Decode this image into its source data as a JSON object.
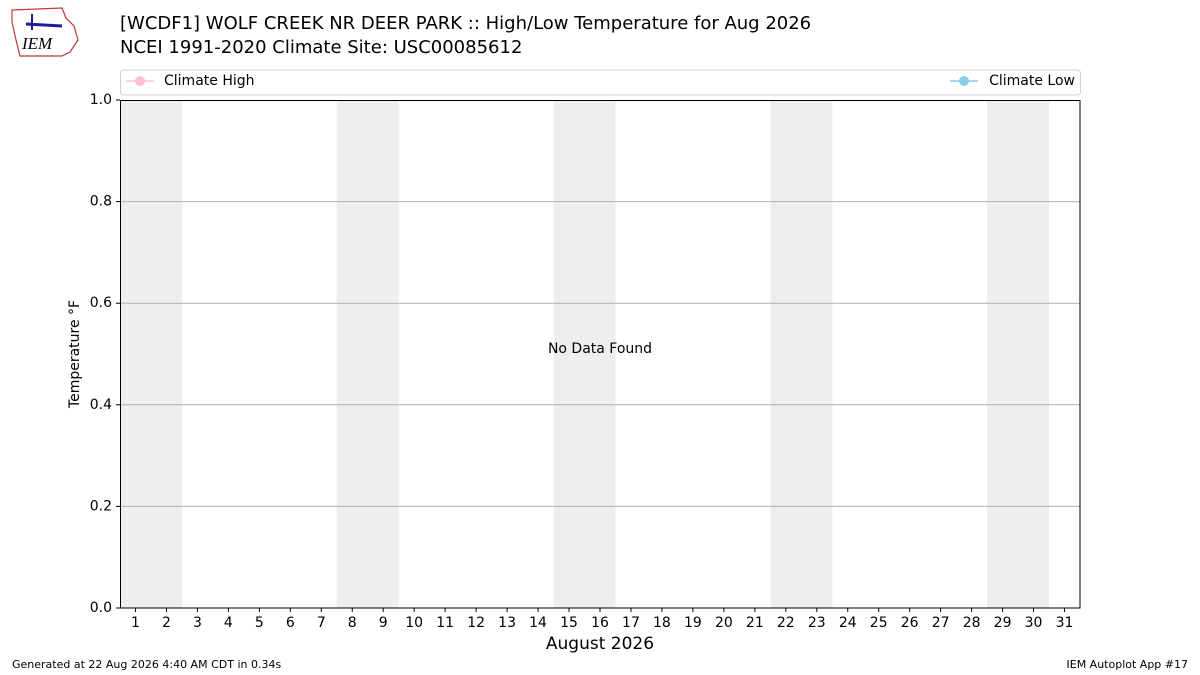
{
  "chart_data": {
    "type": "line",
    "title": "[WCDF1] WOLF CREEK NR DEER PARK :: High/Low Temperature for Aug 2026",
    "subtitle": "NCEI 1991-2020 Climate Site: USC00085612",
    "logo_text": "IEM",
    "x_label": "August 2026",
    "y_label": "Temperature °F",
    "annotation": "No Data Found",
    "footer_left": "Generated at 22 Aug 2026 4:40 AM CDT in 0.34s",
    "footer_right": "IEM Autoplot App #17",
    "x": [],
    "series": [
      {
        "name": "Climate High",
        "color": "pink",
        "values": []
      },
      {
        "name": "Climate Low",
        "color": "skyblue",
        "values": []
      }
    ],
    "shaded_ranges": [
      [
        0.5,
        2.5
      ],
      [
        7.5,
        9.5
      ],
      [
        14.5,
        16.5
      ],
      [
        21.5,
        23.5
      ],
      [
        28.5,
        30.5
      ]
    ],
    "shade_color": "#eeeeee",
    "xlim": [
      0.5,
      31.5
    ],
    "xticks": [
      1,
      2,
      3,
      4,
      5,
      6,
      7,
      8,
      9,
      10,
      11,
      12,
      13,
      14,
      15,
      16,
      17,
      18,
      19,
      20,
      21,
      22,
      23,
      24,
      25,
      26,
      27,
      28,
      29,
      30,
      31
    ],
    "ylim": [
      0,
      1
    ],
    "yticks": [
      {
        "value": 0,
        "label": "0.0"
      },
      0.2,
      0.4,
      0.6,
      0.8,
      {
        "value": 1,
        "label": "1.0"
      }
    ],
    "grid": true,
    "legend": "top"
  }
}
